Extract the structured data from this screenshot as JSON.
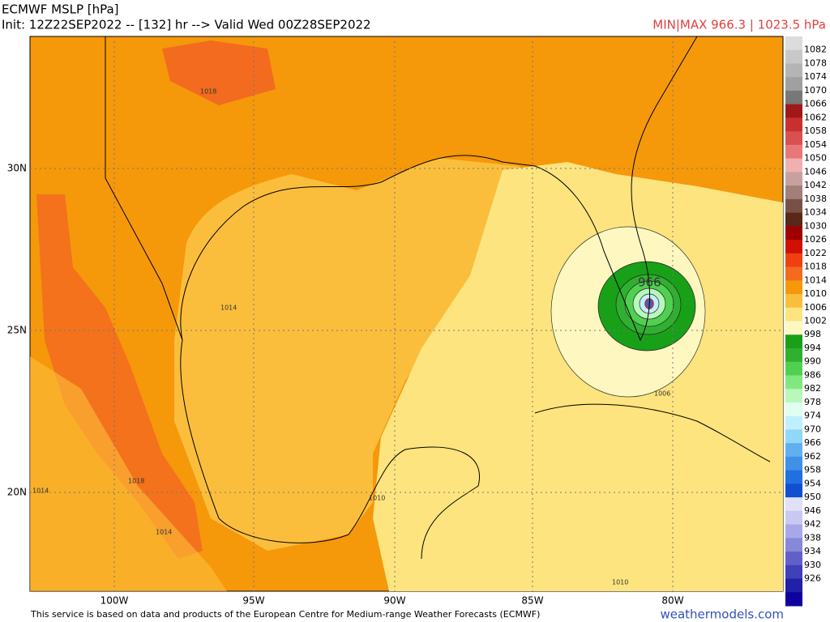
{
  "header": {
    "title": "ECMWF MSLP [hPa]",
    "init": "Init: 12Z22SEP2022 -- [132] hr --> Valid Wed 00Z28SEP2022",
    "minmax": "MIN|MAX 966.3 | 1023.5 hPa"
  },
  "axes": {
    "lon_labels": [
      "100W",
      "95W",
      "90W",
      "85W",
      "80W"
    ],
    "lat_labels": [
      "30N",
      "25N",
      "20N"
    ]
  },
  "contour_labels": [
    "1018",
    "1014",
    "966",
    "1006",
    "1010",
    "1010",
    "1018",
    "1014",
    "1014"
  ],
  "colorbar": {
    "levels": [
      1082,
      1078,
      1074,
      1070,
      1066,
      1062,
      1058,
      1054,
      1050,
      1046,
      1042,
      1038,
      1034,
      1030,
      1026,
      1022,
      1018,
      1014,
      1010,
      1006,
      1002,
      998,
      994,
      990,
      986,
      982,
      978,
      974,
      970,
      966,
      962,
      958,
      954,
      950,
      946,
      942,
      938,
      934,
      930,
      926
    ],
    "colors": [
      "#dcdcdc",
      "#c8c8c8",
      "#b4b4b4",
      "#a0a0a0",
      "#787878",
      "#a01818",
      "#c83030",
      "#d85050",
      "#e87878",
      "#f0b0b0",
      "#c8a0a0",
      "#a08078",
      "#785048",
      "#582818",
      "#a00000",
      "#d01000",
      "#f04010",
      "#f26b1f",
      "#f5980a",
      "#fbbe3c",
      "#fde47e",
      "#fef8c0",
      "#18a018",
      "#30b030",
      "#50d050",
      "#80e880",
      "#b8f8b8",
      "#e0fff0",
      "#c0f0ff",
      "#90d8f8",
      "#60b0f0",
      "#4090e8",
      "#2070e0",
      "#1050d0",
      "#e0e0f8",
      "#c8c8f0",
      "#a8a8e8",
      "#8888d8",
      "#6060c8",
      "#4040b8",
      "#2020a8",
      "#1000a0"
    ]
  },
  "footer": {
    "credit": "This service is based on data and products of the European Centre for Medium-range Weather Forecasts (ECMWF)",
    "site": "weathermodels.com"
  }
}
